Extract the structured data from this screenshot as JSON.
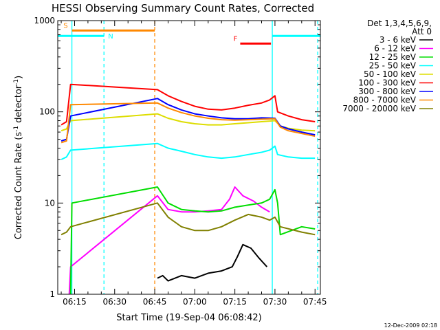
{
  "chart_data": {
    "type": "line",
    "title": "HESSI Observing Summary Count Rates, Corrected",
    "xlabel": "Start Time (19-Sep-04 06:08:42)",
    "ylabel_parts": {
      "main": "Corrected Count Rate (s",
      "sup1": "-1",
      "mid": " detector",
      "sup2": "-1",
      "end": ")"
    },
    "yscale": "log",
    "ylim": [
      1,
      1000
    ],
    "xlim": [
      "06:08:42",
      "07:47:00"
    ],
    "xticks": [
      "06:15",
      "06:30",
      "06:45",
      "07:00",
      "07:15",
      "07:30",
      "07:45"
    ],
    "yticks": [
      "1",
      "10",
      "100",
      "1000"
    ],
    "grid": false,
    "legend_position": "right",
    "legend_header": [
      "Det 1,3,4,5,6,9,",
      "Att 0"
    ],
    "series": [
      {
        "name": "3 - 6 keV",
        "color": "#000000",
        "points": [
          [
            "06:46:00",
            1.5
          ],
          [
            "06:48:00",
            1.6
          ],
          [
            "06:50:00",
            1.4
          ],
          [
            "06:55:00",
            1.6
          ],
          [
            "07:00:00",
            1.5
          ],
          [
            "07:05:00",
            1.7
          ],
          [
            "07:10:00",
            1.8
          ],
          [
            "07:14:00",
            2.0
          ],
          [
            "07:16:00",
            2.6
          ],
          [
            "07:18:00",
            3.5
          ],
          [
            "07:21:00",
            3.2
          ],
          [
            "07:24:00",
            2.5
          ],
          [
            "07:27:00",
            2.0
          ]
        ]
      },
      {
        "name": "6 - 12 keV",
        "color": "#ff00ff",
        "points": [
          [
            "06:13:00",
            1.0
          ],
          [
            "06:13:30",
            2.0
          ],
          [
            "06:46:00",
            12.0
          ],
          [
            "06:50:00",
            8.5
          ],
          [
            "06:55:00",
            8.0
          ],
          [
            "07:00:00",
            8.0
          ],
          [
            "07:05:00",
            8.2
          ],
          [
            "07:10:00",
            8.5
          ],
          [
            "07:13:00",
            11.0
          ],
          [
            "07:15:00",
            15.0
          ],
          [
            "07:18:00",
            12.0
          ],
          [
            "07:22:00",
            10.5
          ],
          [
            "07:25:00",
            9.0
          ],
          [
            "07:28:00",
            8.0
          ]
        ]
      },
      {
        "name": "12 - 25 keV",
        "color": "#00dd00",
        "points": [
          [
            "06:13:30",
            1.0
          ],
          [
            "06:14:00",
            10.0
          ],
          [
            "06:46:00",
            15.0
          ],
          [
            "06:50:00",
            10.0
          ],
          [
            "06:55:00",
            8.5
          ],
          [
            "07:00:00",
            8.2
          ],
          [
            "07:05:00",
            8.0
          ],
          [
            "07:10:00",
            8.2
          ],
          [
            "07:15:00",
            9.0
          ],
          [
            "07:20:00",
            9.5
          ],
          [
            "07:25:00",
            10.0
          ],
          [
            "07:28:00",
            11.0
          ],
          [
            "07:30:00",
            14.0
          ],
          [
            "07:31:00",
            10.0
          ],
          [
            "07:32:00",
            4.5
          ],
          [
            "07:40:00",
            5.5
          ],
          [
            "07:45:00",
            5.2
          ]
        ]
      },
      {
        "name": "25 - 50 keV",
        "color": "#00ffff",
        "points": [
          [
            "06:10:00",
            30.0
          ],
          [
            "06:12:00",
            32.0
          ],
          [
            "06:13:30",
            38.0
          ],
          [
            "06:46:00",
            45.0
          ],
          [
            "06:50:00",
            40.0
          ],
          [
            "06:55:00",
            37.0
          ],
          [
            "07:00:00",
            34.0
          ],
          [
            "07:05:00",
            32.0
          ],
          [
            "07:10:00",
            31.0
          ],
          [
            "07:15:00",
            32.0
          ],
          [
            "07:20:00",
            34.0
          ],
          [
            "07:25:00",
            36.0
          ],
          [
            "07:28:00",
            38.0
          ],
          [
            "07:30:00",
            42.0
          ],
          [
            "07:31:00",
            34.0
          ],
          [
            "07:35:00",
            32.0
          ],
          [
            "07:40:00",
            31.0
          ],
          [
            "07:45:00",
            31.0
          ]
        ]
      },
      {
        "name": "50 - 100 keV",
        "color": "#dddd00",
        "points": [
          [
            "06:10:00",
            62.0
          ],
          [
            "06:12:00",
            65.0
          ],
          [
            "06:13:30",
            80.0
          ],
          [
            "06:46:00",
            95.0
          ],
          [
            "06:50:00",
            85.0
          ],
          [
            "06:55:00",
            78.0
          ],
          [
            "07:00:00",
            74.0
          ],
          [
            "07:05:00",
            72.0
          ],
          [
            "07:10:00",
            72.0
          ],
          [
            "07:15:00",
            74.0
          ],
          [
            "07:20:00",
            76.0
          ],
          [
            "07:25:00",
            78.0
          ],
          [
            "07:30:00",
            80.0
          ],
          [
            "07:32:00",
            70.0
          ],
          [
            "07:35:00",
            66.0
          ],
          [
            "07:40:00",
            63.0
          ],
          [
            "07:45:00",
            62.0
          ]
        ]
      },
      {
        "name": "100 - 300 keV",
        "color": "#ff0000",
        "points": [
          [
            "06:10:00",
            72.0
          ],
          [
            "06:12:00",
            78.0
          ],
          [
            "06:13:30",
            200.0
          ],
          [
            "06:46:00",
            175.0
          ],
          [
            "06:50:00",
            150.0
          ],
          [
            "06:55:00",
            130.0
          ],
          [
            "07:00:00",
            115.0
          ],
          [
            "07:05:00",
            107.0
          ],
          [
            "07:10:00",
            105.0
          ],
          [
            "07:15:00",
            110.0
          ],
          [
            "07:20:00",
            118.0
          ],
          [
            "07:25:00",
            125.0
          ],
          [
            "07:28:00",
            135.0
          ],
          [
            "07:30:00",
            150.0
          ],
          [
            "07:31:00",
            100.0
          ],
          [
            "07:35:00",
            90.0
          ],
          [
            "07:40:00",
            82.0
          ],
          [
            "07:45:00",
            78.0
          ]
        ]
      },
      {
        "name": "300 - 800 keV",
        "color": "#0000ff",
        "points": [
          [
            "06:10:00",
            48.0
          ],
          [
            "06:12:00",
            50.0
          ],
          [
            "06:13:30",
            90.0
          ],
          [
            "06:46:00",
            140.0
          ],
          [
            "06:50:00",
            120.0
          ],
          [
            "06:55:00",
            105.0
          ],
          [
            "07:00:00",
            95.0
          ],
          [
            "07:05:00",
            90.0
          ],
          [
            "07:10:00",
            86.0
          ],
          [
            "07:15:00",
            84.0
          ],
          [
            "07:20:00",
            84.0
          ],
          [
            "07:25:00",
            86.0
          ],
          [
            "07:30:00",
            85.0
          ],
          [
            "07:32:00",
            70.0
          ],
          [
            "07:35:00",
            65.0
          ],
          [
            "07:40:00",
            60.0
          ],
          [
            "07:45:00",
            56.0
          ]
        ]
      },
      {
        "name": "800 - 7000 keV",
        "color": "#ff8800",
        "points": [
          [
            "06:10:00",
            46.0
          ],
          [
            "06:12:00",
            48.0
          ],
          [
            "06:13:30",
            120.0
          ],
          [
            "06:46:00",
            125.0
          ],
          [
            "06:50:00",
            110.0
          ],
          [
            "06:55:00",
            98.0
          ],
          [
            "07:00:00",
            90.0
          ],
          [
            "07:05:00",
            85.0
          ],
          [
            "07:10:00",
            82.0
          ],
          [
            "07:15:00",
            81.0
          ],
          [
            "07:20:00",
            82.0
          ],
          [
            "07:25:00",
            83.0
          ],
          [
            "07:30:00",
            84.0
          ],
          [
            "07:32:00",
            68.0
          ],
          [
            "07:35:00",
            62.0
          ],
          [
            "07:40:00",
            58.0
          ],
          [
            "07:45:00",
            54.0
          ]
        ]
      },
      {
        "name": "7000 - 20000 keV",
        "color": "#808000",
        "points": [
          [
            "06:10:00",
            4.5
          ],
          [
            "06:12:00",
            4.8
          ],
          [
            "06:13:30",
            5.5
          ],
          [
            "06:46:00",
            10.0
          ],
          [
            "06:50:00",
            7.0
          ],
          [
            "06:55:00",
            5.5
          ],
          [
            "07:00:00",
            5.0
          ],
          [
            "07:05:00",
            5.0
          ],
          [
            "07:10:00",
            5.5
          ],
          [
            "07:15:00",
            6.5
          ],
          [
            "07:20:00",
            7.5
          ],
          [
            "07:25:00",
            7.0
          ],
          [
            "07:28:00",
            6.5
          ],
          [
            "07:30:00",
            7.0
          ],
          [
            "07:32:00",
            5.5
          ],
          [
            "07:40:00",
            4.8
          ],
          [
            "07:45:00",
            4.5
          ]
        ]
      }
    ],
    "status_bars": [
      {
        "label": "S",
        "color": "#ff8800",
        "start": "06:14:00",
        "end": "06:45:00",
        "level": 780
      },
      {
        "label": "N",
        "color": "#00ffff",
        "start": "06:08:42",
        "end": "06:26:00",
        "level": 680
      },
      {
        "label": "",
        "color": "#00ffff",
        "start": "07:29:00",
        "end": "07:47:00",
        "level": 680
      },
      {
        "label": "F",
        "color": "#ff0000",
        "start": "07:17:00",
        "end": "07:28:30",
        "level": 560
      }
    ],
    "vertical_markers": [
      {
        "time": "06:14:00",
        "color": "#00ffff",
        "style": "solid"
      },
      {
        "time": "06:26:00",
        "color": "#00ffff",
        "style": "dashed"
      },
      {
        "time": "06:45:00",
        "color": "#ff8800",
        "style": "dashed"
      },
      {
        "time": "07:29:00",
        "color": "#00ffff",
        "style": "solid"
      },
      {
        "time": "07:46:00",
        "color": "#00ffff",
        "style": "dashed"
      }
    ],
    "footer_date": "12-Dec-2009 02:18"
  }
}
